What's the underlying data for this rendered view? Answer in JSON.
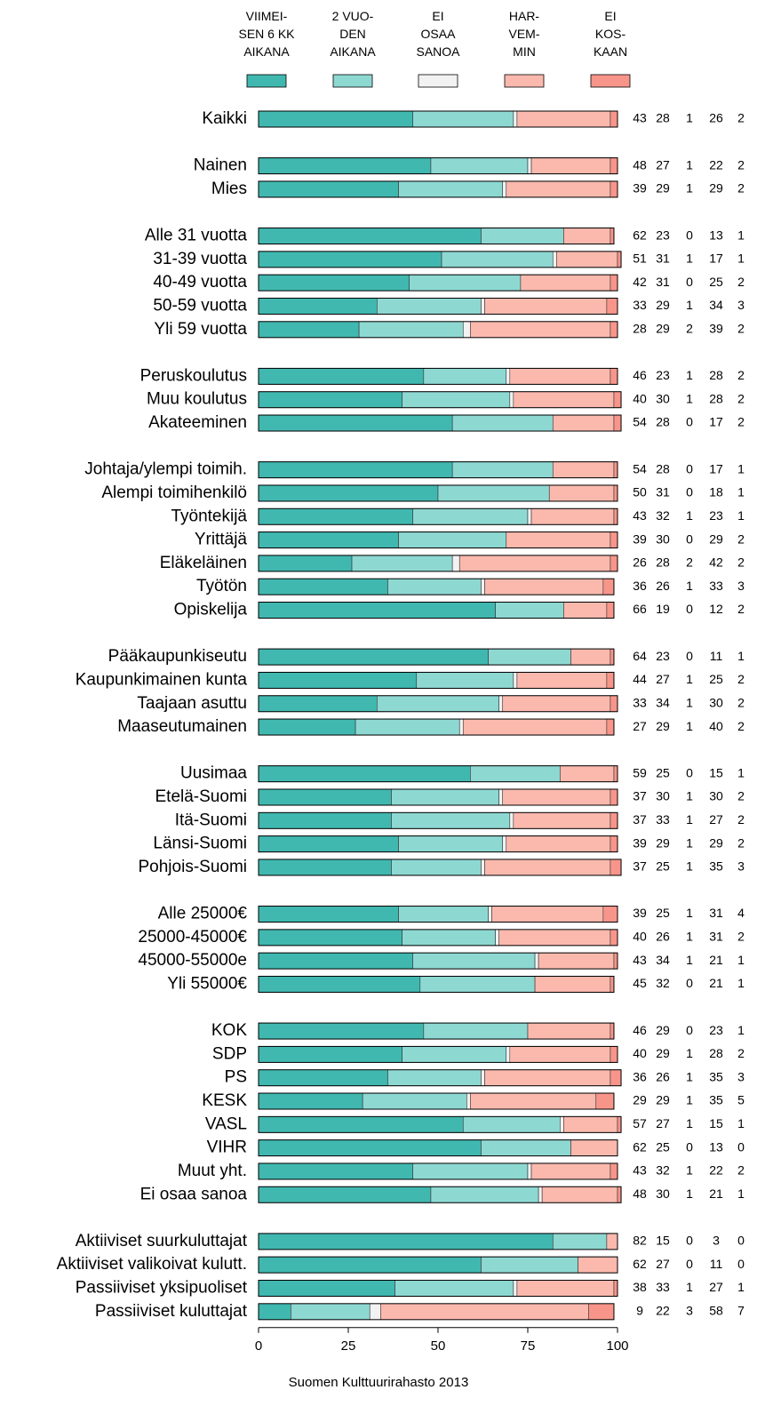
{
  "chart_data": {
    "type": "stacked_barh",
    "categories": [
      "Kaikki",
      null,
      "Nainen",
      "Mies",
      null,
      "Alle 31 vuotta",
      "31-39 vuotta",
      "40-49 vuotta",
      "50-59 vuotta",
      "Yli 59 vuotta",
      null,
      "Peruskoulutus",
      "Muu koulutus",
      "Akateeminen",
      null,
      "Johtaja/ylempi toimih.",
      "Alempi toimihenkilö",
      "Työntekijä",
      "Yrittäjä",
      "Eläkeläinen",
      "Työtön",
      "Opiskelija",
      null,
      "Pääkaupunkiseutu",
      "Kaupunkimainen kunta",
      "Taajaan asuttu",
      "Maaseutumainen",
      null,
      "Uusimaa",
      "Etelä-Suomi",
      "Itä-Suomi",
      "Länsi-Suomi",
      "Pohjois-Suomi",
      null,
      "Alle 25000€",
      "25000-45000€",
      "45000-55000e",
      "Yli 55000€",
      null,
      "KOK",
      "SDP",
      "PS",
      "KESK",
      "VASL",
      "VIHR",
      "Muut yht.",
      "Ei osaa sanoa",
      null,
      "Aktiiviset suurkuluttajat",
      "Aktiiviset valikoivat kulutt.",
      "Passiiviset yksipuoliset",
      "Passiiviset kuluttajat"
    ],
    "series": [
      {
        "name": "VIIMEI-\nSEN 6 KK\nAIKANA",
        "color": "#40b8b0",
        "values": [
          43,
          null,
          48,
          39,
          null,
          62,
          51,
          42,
          33,
          28,
          null,
          46,
          40,
          54,
          null,
          54,
          50,
          43,
          39,
          26,
          36,
          66,
          null,
          64,
          44,
          33,
          27,
          null,
          59,
          37,
          37,
          39,
          37,
          null,
          39,
          40,
          43,
          45,
          null,
          46,
          40,
          36,
          29,
          57,
          62,
          43,
          48,
          null,
          82,
          62,
          38,
          9
        ]
      },
      {
        "name": "2 VUO-\nDEN\nAIKANA",
        "color": "#8ed8d2",
        "values": [
          28,
          null,
          27,
          29,
          null,
          23,
          31,
          31,
          29,
          29,
          null,
          23,
          30,
          28,
          null,
          28,
          31,
          32,
          30,
          28,
          26,
          19,
          null,
          23,
          27,
          34,
          29,
          null,
          25,
          30,
          33,
          29,
          25,
          null,
          25,
          26,
          34,
          32,
          null,
          29,
          29,
          26,
          29,
          27,
          25,
          32,
          30,
          null,
          15,
          27,
          33,
          22
        ]
      },
      {
        "name": "EI\nOSAA\nSANOA",
        "color": "#f2f2f2",
        "values": [
          1,
          null,
          1,
          1,
          null,
          0,
          1,
          0,
          1,
          2,
          null,
          1,
          1,
          0,
          null,
          0,
          0,
          1,
          0,
          2,
          1,
          0,
          null,
          0,
          1,
          1,
          1,
          null,
          0,
          1,
          1,
          1,
          1,
          null,
          1,
          1,
          1,
          0,
          null,
          0,
          1,
          1,
          1,
          1,
          0,
          1,
          1,
          null,
          0,
          0,
          1,
          3
        ]
      },
      {
        "name": "HAR-\nVEM-\nMIN",
        "color": "#fbb9ae",
        "values": [
          26,
          null,
          22,
          29,
          null,
          13,
          17,
          25,
          34,
          39,
          null,
          28,
          28,
          17,
          null,
          17,
          18,
          23,
          29,
          42,
          33,
          12,
          null,
          11,
          25,
          30,
          40,
          null,
          15,
          30,
          27,
          29,
          35,
          null,
          31,
          31,
          21,
          21,
          null,
          23,
          28,
          35,
          35,
          15,
          13,
          22,
          21,
          null,
          3,
          11,
          27,
          58
        ]
      },
      {
        "name": "EI\nKOS-\nKAAN",
        "color": "#f8958a",
        "values": [
          2,
          null,
          2,
          2,
          null,
          1,
          1,
          2,
          3,
          2,
          null,
          2,
          2,
          2,
          null,
          1,
          1,
          1,
          2,
          2,
          3,
          2,
          null,
          1,
          2,
          2,
          2,
          null,
          1,
          2,
          2,
          2,
          3,
          null,
          4,
          2,
          1,
          1,
          null,
          1,
          2,
          3,
          5,
          1,
          0,
          2,
          1,
          null,
          0,
          0,
          1,
          7
        ]
      }
    ],
    "xlim": [
      0,
      100
    ],
    "xticks": [
      0,
      25,
      50,
      75,
      100
    ],
    "source": "Suomen Kulttuurirahasto 2013"
  }
}
